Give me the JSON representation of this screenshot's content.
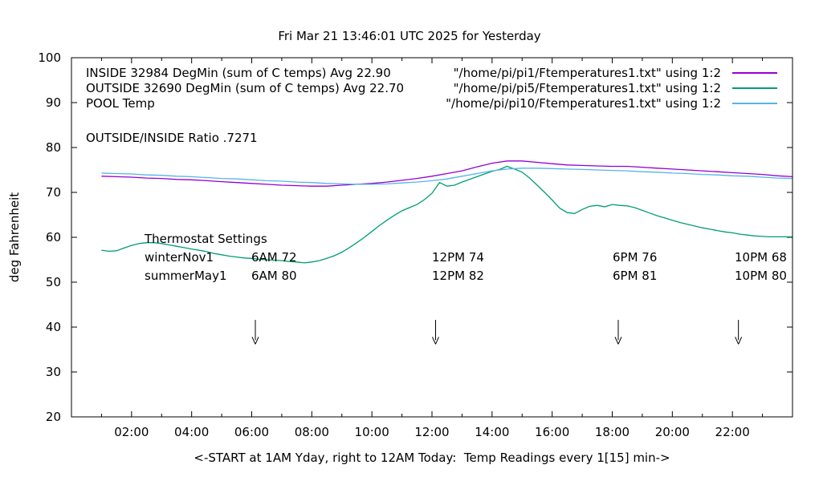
{
  "chart_data": {
    "type": "line",
    "title": "Fri Mar 21 13:46:01 UTC 2025 for Yesterday",
    "xlabel": "<-START at 1AM Yday, right to 12AM Today:  Temp Readings every 1[15] min->",
    "ylabel": "deg Fahrenheit",
    "xlim": [
      0,
      24
    ],
    "ylim": [
      20,
      100
    ],
    "grid": false,
    "legend_position": "top-left-inside",
    "x_ticks": {
      "values": [
        2,
        4,
        6,
        8,
        10,
        12,
        14,
        16,
        18,
        20,
        22
      ],
      "labels": [
        "02:00",
        "04:00",
        "06:00",
        "08:00",
        "10:00",
        "12:00",
        "14:00",
        "16:00",
        "18:00",
        "20:00",
        "22:00"
      ],
      "minor_every": 1
    },
    "y_ticks": {
      "values": [
        20,
        30,
        40,
        50,
        60,
        70,
        80,
        90,
        100
      ],
      "labels": [
        "20",
        "30",
        "40",
        "50",
        "60",
        "70",
        "80",
        "90",
        "100"
      ]
    },
    "legend": [
      {
        "name": "INSIDE",
        "label": "INSIDE 32984 DegMin (sum of C temps) Avg 22.90",
        "file": "\"/home/pi/pi1/Ftemperatures1.txt\" using 1:2",
        "color": "#9400d3"
      },
      {
        "name": "OUTSIDE",
        "label": "OUTSIDE 32690 DegMin (sum of C temps) Avg 22.70",
        "file": "\"/home/pi/pi5/Ftemperatures1.txt\" using 1:2",
        "color": "#009e73"
      },
      {
        "name": "POOL",
        "label": "POOL Temp",
        "file": "\"/home/pi/pi10/Ftemperatures1.txt\" using 1:2",
        "color": "#56b4e9"
      }
    ],
    "annotations": {
      "ratio": "OUTSIDE/INSIDE Ratio .7271",
      "thermostat_title": "Thermostat Settings",
      "thermostat_rows": [
        {
          "label": "winterNov1",
          "values": [
            "6AM 72",
            "12PM 74",
            "6PM 76",
            "10PM 68"
          ]
        },
        {
          "label": "summerMay1",
          "values": [
            "6AM 80",
            "12PM 82",
            "6PM 81",
            "10PM 80"
          ]
        }
      ]
    },
    "arrows": {
      "hours": [
        6.12,
        12.12,
        18.2,
        22.2
      ],
      "temp_top": 41.6,
      "temp_tip": 36.2
    },
    "series": [
      {
        "name": "INSIDE",
        "color": "#9400d3",
        "x": [
          1,
          1.5,
          2,
          2.5,
          3,
          3.5,
          4,
          4.5,
          5,
          5.5,
          6,
          6.5,
          7,
          7.5,
          8,
          8.5,
          9,
          9.5,
          10,
          10.5,
          11,
          11.5,
          12,
          12.5,
          13,
          13.5,
          14,
          14.5,
          15,
          15.5,
          16,
          16.5,
          17,
          17.5,
          18,
          18.5,
          19,
          19.5,
          20,
          20.5,
          21,
          21.5,
          22,
          22.5,
          23,
          23.5,
          24
        ],
        "y": [
          73.6,
          73.5,
          73.4,
          73.2,
          73.1,
          72.9,
          72.8,
          72.6,
          72.4,
          72.2,
          72.0,
          71.8,
          71.6,
          71.5,
          71.4,
          71.4,
          71.6,
          71.8,
          72.0,
          72.3,
          72.7,
          73.1,
          73.6,
          74.2,
          74.8,
          75.7,
          76.5,
          77.0,
          77.0,
          76.7,
          76.4,
          76.1,
          76.0,
          75.9,
          75.8,
          75.8,
          75.6,
          75.4,
          75.2,
          75.0,
          74.8,
          74.6,
          74.4,
          74.2,
          74.0,
          73.7,
          73.5
        ]
      },
      {
        "name": "OUTSIDE",
        "color": "#009e73",
        "x": [
          1,
          1.25,
          1.5,
          1.75,
          2,
          2.25,
          2.5,
          2.75,
          3,
          3.25,
          3.5,
          3.75,
          4,
          4.25,
          4.5,
          4.75,
          5,
          5.25,
          5.5,
          5.75,
          6,
          6.25,
          6.5,
          6.75,
          7,
          7.25,
          7.5,
          7.75,
          8,
          8.25,
          8.5,
          8.75,
          9,
          9.25,
          9.5,
          9.75,
          10,
          10.25,
          10.5,
          10.75,
          11,
          11.25,
          11.5,
          11.75,
          12,
          12.25,
          12.5,
          12.75,
          13,
          13.25,
          13.5,
          13.75,
          14,
          14.25,
          14.5,
          14.75,
          15,
          15.25,
          15.5,
          15.75,
          16,
          16.25,
          16.5,
          16.75,
          17,
          17.25,
          17.5,
          17.75,
          18,
          18.25,
          18.5,
          18.75,
          19,
          19.25,
          19.5,
          19.75,
          20,
          20.25,
          20.5,
          20.75,
          21,
          21.25,
          21.5,
          21.75,
          22,
          22.25,
          22.5,
          22.75,
          23,
          23.25,
          23.5,
          23.75,
          24
        ],
        "y": [
          57.1,
          56.9,
          57.0,
          57.6,
          58.2,
          58.6,
          58.8,
          58.8,
          58.6,
          58.3,
          58.0,
          57.7,
          57.4,
          57.1,
          56.8,
          56.4,
          56.1,
          55.8,
          55.6,
          55.4,
          55.3,
          55.1,
          55.0,
          54.9,
          54.8,
          54.6,
          54.5,
          54.3,
          54.5,
          54.8,
          55.3,
          55.9,
          56.7,
          57.7,
          58.8,
          60.0,
          61.3,
          62.6,
          63.8,
          64.9,
          65.9,
          66.6,
          67.3,
          68.4,
          69.8,
          72.2,
          71.4,
          71.6,
          72.3,
          72.9,
          73.5,
          74.1,
          74.7,
          75.1,
          75.8,
          75.2,
          74.5,
          73.2,
          71.6,
          70.0,
          68.3,
          66.5,
          65.5,
          65.3,
          66.2,
          66.9,
          67.1,
          66.8,
          67.3,
          67.1,
          67.0,
          66.6,
          66.0,
          65.4,
          64.8,
          64.3,
          63.8,
          63.3,
          62.9,
          62.5,
          62.1,
          61.8,
          61.5,
          61.2,
          61.0,
          60.7,
          60.5,
          60.3,
          60.2,
          60.1,
          60.1,
          60.1,
          60.1
        ]
      },
      {
        "name": "POOL",
        "color": "#56b4e9",
        "x": [
          1,
          1.5,
          2,
          2.5,
          3,
          3.5,
          4,
          4.5,
          5,
          5.5,
          6,
          6.5,
          7,
          7.5,
          8,
          8.5,
          9,
          9.5,
          10,
          10.5,
          11,
          11.5,
          12,
          12.5,
          13,
          13.5,
          14,
          14.5,
          15,
          15.5,
          16,
          16.5,
          17,
          17.5,
          18,
          18.5,
          19,
          19.5,
          20,
          20.5,
          21,
          21.5,
          22,
          22.5,
          23,
          23.5,
          24
        ],
        "y": [
          74.3,
          74.2,
          74.1,
          73.9,
          73.8,
          73.6,
          73.5,
          73.3,
          73.1,
          73.0,
          72.8,
          72.6,
          72.5,
          72.3,
          72.2,
          72.0,
          71.9,
          71.8,
          71.8,
          71.9,
          72.1,
          72.3,
          72.6,
          73.0,
          73.6,
          74.2,
          74.8,
          75.2,
          75.4,
          75.4,
          75.3,
          75.2,
          75.1,
          75.0,
          74.9,
          74.8,
          74.6,
          74.5,
          74.3,
          74.2,
          74.0,
          73.9,
          73.7,
          73.6,
          73.4,
          73.2,
          73.1
        ]
      }
    ]
  }
}
